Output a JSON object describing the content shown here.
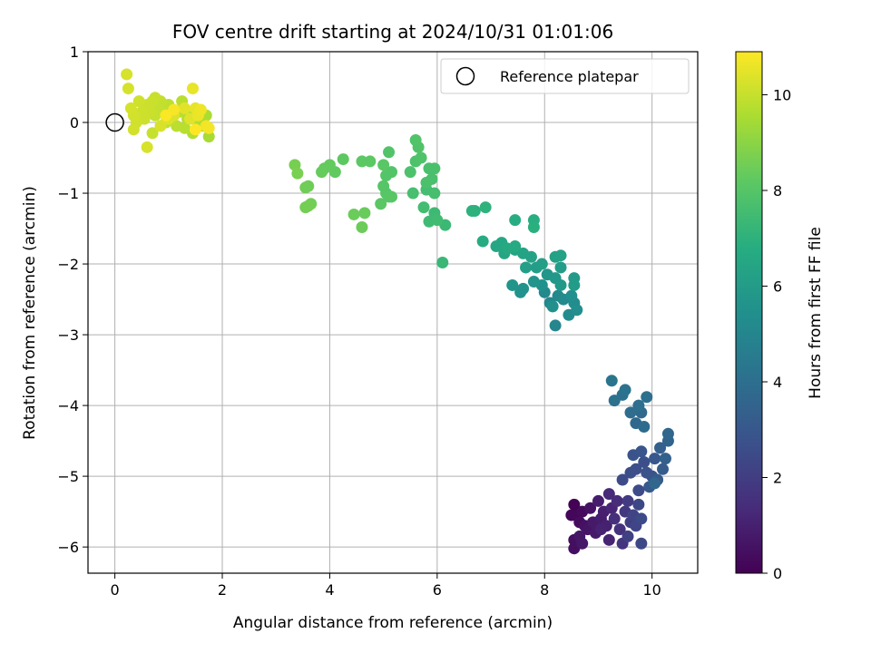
{
  "chart_data": {
    "type": "scatter",
    "title": "FOV centre drift starting at 2024/10/31 01:01:06",
    "xlabel": "Angular distance from reference (arcmin)",
    "ylabel": "Rotation from reference (arcmin)",
    "colorbar_label": "Hours from first FF file",
    "xlim": [
      -0.5,
      10.85
    ],
    "ylim": [
      -6.37,
      1.0
    ],
    "x_ticks": [
      0,
      2,
      4,
      6,
      8,
      10
    ],
    "y_ticks": [
      1,
      0,
      -1,
      -2,
      -3,
      -4,
      -5,
      -6
    ],
    "x_tick_labels": [
      "0",
      "2",
      "4",
      "6",
      "8",
      "10"
    ],
    "y_tick_labels": [
      "1",
      "0",
      "−1",
      "−2",
      "−3",
      "−4",
      "−5",
      "−6"
    ],
    "colorbar_range": [
      0,
      10.9
    ],
    "colorbar_ticks": [
      0,
      2,
      4,
      6,
      8,
      10
    ],
    "colorbar_tick_labels": [
      "0",
      "2",
      "4",
      "6",
      "8",
      "10"
    ],
    "colormap": "viridis",
    "grid": true,
    "legend": {
      "placement": "top-right",
      "entries": [
        {
          "label": "Reference platepar",
          "marker": "open-circle",
          "x": 0,
          "y": 0
        }
      ]
    },
    "points": [
      [
        8.55,
        -5.4,
        0.05
      ],
      [
        8.6,
        -5.55,
        0.15
      ],
      [
        8.5,
        -5.55,
        0.2
      ],
      [
        8.7,
        -5.5,
        0.3
      ],
      [
        8.65,
        -5.65,
        0.35
      ],
      [
        8.55,
        -5.9,
        0.4
      ],
      [
        8.55,
        -6.02,
        0.45
      ],
      [
        8.75,
        -5.7,
        0.5
      ],
      [
        8.85,
        -5.45,
        0.55
      ],
      [
        8.8,
        -5.75,
        0.6
      ],
      [
        8.65,
        -5.85,
        0.65
      ],
      [
        8.7,
        -5.95,
        0.7
      ],
      [
        8.9,
        -5.65,
        0.75
      ],
      [
        8.95,
        -5.8,
        0.8
      ],
      [
        9.05,
        -5.6,
        0.85
      ],
      [
        9.0,
        -5.35,
        0.9
      ],
      [
        9.1,
        -5.5,
        0.95
      ],
      [
        9.15,
        -5.7,
        1.0
      ],
      [
        9.05,
        -5.75,
        1.05
      ],
      [
        9.2,
        -5.9,
        1.1
      ],
      [
        9.25,
        -5.45,
        1.2
      ],
      [
        9.2,
        -5.25,
        1.3
      ],
      [
        9.35,
        -5.35,
        1.4
      ],
      [
        9.3,
        -5.6,
        1.5
      ],
      [
        9.4,
        -5.75,
        1.6
      ],
      [
        9.45,
        -5.95,
        1.7
      ],
      [
        9.5,
        -5.5,
        1.8
      ],
      [
        9.55,
        -5.35,
        1.9
      ],
      [
        9.6,
        -5.65,
        2.0
      ],
      [
        9.55,
        -5.85,
        2.1
      ],
      [
        9.65,
        -5.55,
        2.2
      ],
      [
        9.7,
        -5.7,
        2.3
      ],
      [
        9.75,
        -5.4,
        2.35
      ],
      [
        9.8,
        -5.95,
        2.4
      ],
      [
        9.8,
        -5.6,
        2.45
      ],
      [
        9.75,
        -5.2,
        2.5
      ],
      [
        9.45,
        -5.05,
        2.55
      ],
      [
        9.6,
        -4.95,
        2.6
      ],
      [
        9.7,
        -4.9,
        2.65
      ],
      [
        9.85,
        -4.8,
        2.7
      ],
      [
        9.9,
        -4.95,
        2.75
      ],
      [
        10.0,
        -5.0,
        2.8
      ],
      [
        9.65,
        -4.7,
        2.85
      ],
      [
        9.8,
        -4.65,
        2.9
      ],
      [
        10.05,
        -4.75,
        3.0
      ],
      [
        9.95,
        -5.15,
        3.05
      ],
      [
        10.1,
        -5.05,
        3.1
      ],
      [
        10.2,
        -4.9,
        3.2
      ],
      [
        10.15,
        -4.6,
        3.3
      ],
      [
        10.25,
        -4.75,
        3.4
      ],
      [
        10.3,
        -4.5,
        3.5
      ],
      [
        10.3,
        -4.4,
        3.6
      ],
      [
        10.05,
        -5.1,
        3.65
      ],
      [
        9.7,
        -4.25,
        3.7
      ],
      [
        9.8,
        -4.1,
        3.8
      ],
      [
        9.85,
        -4.3,
        3.85
      ],
      [
        9.6,
        -4.1,
        3.9
      ],
      [
        9.75,
        -4.0,
        3.95
      ],
      [
        9.9,
        -3.88,
        4.0
      ],
      [
        9.45,
        -3.85,
        4.05
      ],
      [
        9.3,
        -3.93,
        4.1
      ],
      [
        9.5,
        -3.78,
        4.15
      ],
      [
        9.25,
        -3.65,
        4.2
      ],
      [
        8.2,
        -2.87,
        5.0
      ],
      [
        8.1,
        -2.55,
        5.05
      ],
      [
        8.25,
        -2.45,
        5.1
      ],
      [
        8.0,
        -2.4,
        5.15
      ],
      [
        8.35,
        -2.5,
        5.2
      ],
      [
        8.45,
        -2.72,
        5.25
      ],
      [
        8.55,
        -2.55,
        5.3
      ],
      [
        8.6,
        -2.65,
        5.35
      ],
      [
        8.5,
        -2.45,
        5.4
      ],
      [
        8.15,
        -2.6,
        5.45
      ],
      [
        7.95,
        -2.3,
        5.5
      ],
      [
        7.55,
        -2.4,
        5.55
      ],
      [
        7.6,
        -2.35,
        5.6
      ],
      [
        7.8,
        -2.25,
        5.65
      ],
      [
        7.4,
        -2.3,
        5.7
      ],
      [
        8.05,
        -2.15,
        5.75
      ],
      [
        8.2,
        -2.2,
        5.8
      ],
      [
        8.3,
        -2.3,
        5.85
      ],
      [
        8.55,
        -2.2,
        5.9
      ],
      [
        8.55,
        -2.3,
        5.95
      ],
      [
        8.3,
        -2.05,
        6.0
      ],
      [
        7.85,
        -2.05,
        6.05
      ],
      [
        7.65,
        -2.05,
        6.1
      ],
      [
        7.95,
        -2.0,
        6.15
      ],
      [
        8.2,
        -1.9,
        6.2
      ],
      [
        8.3,
        -1.88,
        6.25
      ],
      [
        7.75,
        -1.9,
        6.3
      ],
      [
        7.6,
        -1.85,
        6.35
      ],
      [
        7.45,
        -1.8,
        6.4
      ],
      [
        7.25,
        -1.85,
        6.45
      ],
      [
        7.1,
        -1.75,
        6.5
      ],
      [
        7.2,
        -1.7,
        6.55
      ],
      [
        7.3,
        -1.78,
        6.6
      ],
      [
        7.45,
        -1.75,
        6.65
      ],
      [
        6.85,
        -1.68,
        6.7
      ],
      [
        7.45,
        -1.38,
        6.8
      ],
      [
        7.8,
        -1.38,
        6.85
      ],
      [
        7.8,
        -1.48,
        6.9
      ],
      [
        6.7,
        -1.25,
        6.95
      ],
      [
        6.65,
        -1.25,
        7.0
      ],
      [
        6.9,
        -1.2,
        7.05
      ],
      [
        6.1,
        -1.98,
        7.3
      ],
      [
        6.15,
        -1.45,
        7.35
      ],
      [
        5.95,
        -1.28,
        7.4
      ],
      [
        5.85,
        -1.4,
        7.45
      ],
      [
        6.0,
        -1.38,
        7.5
      ],
      [
        5.75,
        -1.2,
        7.55
      ],
      [
        5.8,
        -0.95,
        7.6
      ],
      [
        5.95,
        -1.0,
        7.62
      ],
      [
        5.55,
        -1.0,
        7.65
      ],
      [
        5.9,
        -0.8,
        7.7
      ],
      [
        5.85,
        -0.65,
        7.72
      ],
      [
        5.95,
        -0.65,
        7.75
      ],
      [
        5.8,
        -0.85,
        7.78
      ],
      [
        5.5,
        -0.7,
        7.8
      ],
      [
        5.6,
        -0.55,
        7.82
      ],
      [
        5.7,
        -0.5,
        7.85
      ],
      [
        5.65,
        -0.35,
        7.88
      ],
      [
        5.6,
        -0.25,
        7.9
      ],
      [
        5.1,
        -0.42,
        7.92
      ],
      [
        5.15,
        -0.7,
        7.95
      ],
      [
        5.05,
        -0.75,
        7.97
      ],
      [
        5.0,
        -0.9,
        8.0
      ],
      [
        5.05,
        -1.0,
        8.02
      ],
      [
        5.1,
        -1.05,
        8.05
      ],
      [
        5.15,
        -1.05,
        8.08
      ],
      [
        5.0,
        -0.6,
        8.1
      ],
      [
        4.95,
        -1.15,
        8.12
      ],
      [
        4.75,
        -0.55,
        8.15
      ],
      [
        4.6,
        -0.55,
        8.18
      ],
      [
        4.25,
        -0.52,
        8.2
      ],
      [
        4.1,
        -0.7,
        8.25
      ],
      [
        4.0,
        -0.6,
        8.3
      ],
      [
        3.9,
        -0.65,
        8.32
      ],
      [
        3.85,
        -0.7,
        8.35
      ],
      [
        4.65,
        -1.28,
        8.4
      ],
      [
        4.45,
        -1.3,
        8.42
      ],
      [
        4.6,
        -1.48,
        8.45
      ],
      [
        3.6,
        -0.9,
        8.5
      ],
      [
        3.55,
        -0.92,
        8.52
      ],
      [
        3.65,
        -1.15,
        8.55
      ],
      [
        3.55,
        -1.2,
        8.58
      ],
      [
        3.6,
        -1.18,
        8.6
      ],
      [
        3.35,
        -0.6,
        8.65
      ],
      [
        3.4,
        -0.72,
        8.7
      ],
      [
        1.75,
        -0.2,
        9.5
      ],
      [
        1.7,
        0.1,
        9.55
      ],
      [
        1.65,
        -0.05,
        9.6
      ],
      [
        1.6,
        0.15,
        9.62
      ],
      [
        1.55,
        0.0,
        9.65
      ],
      [
        1.45,
        -0.15,
        9.68
      ],
      [
        1.4,
        0.1,
        9.7
      ],
      [
        1.35,
        0.05,
        9.72
      ],
      [
        1.3,
        -0.08,
        9.75
      ],
      [
        1.2,
        0.15,
        9.78
      ],
      [
        1.25,
        0.3,
        9.8
      ],
      [
        1.15,
        -0.05,
        9.82
      ],
      [
        1.05,
        0.05,
        9.85
      ],
      [
        1.0,
        0.25,
        9.87
      ],
      [
        0.95,
        0.0,
        9.9
      ],
      [
        0.9,
        0.15,
        9.92
      ],
      [
        0.85,
        0.3,
        9.94
      ],
      [
        0.8,
        0.2,
        9.96
      ],
      [
        0.75,
        0.1,
        9.98
      ],
      [
        0.7,
        -0.15,
        10.0
      ],
      [
        0.75,
        0.35,
        10.02
      ],
      [
        0.7,
        0.3,
        10.04
      ],
      [
        0.65,
        0.15,
        10.06
      ],
      [
        0.6,
        0.25,
        10.08
      ],
      [
        0.55,
        0.05,
        10.1
      ],
      [
        0.5,
        0.15,
        10.12
      ],
      [
        0.45,
        0.3,
        10.14
      ],
      [
        0.4,
        0.0,
        10.16
      ],
      [
        0.35,
        -0.1,
        10.18
      ],
      [
        0.35,
        0.1,
        10.2
      ],
      [
        0.3,
        0.2,
        10.22
      ],
      [
        0.25,
        0.48,
        10.24
      ],
      [
        0.22,
        0.68,
        10.26
      ],
      [
        0.6,
        -0.35,
        10.28
      ],
      [
        0.85,
        -0.05,
        10.3
      ],
      [
        1.1,
        0.1,
        10.32
      ],
      [
        1.0,
        0.05,
        10.35
      ],
      [
        1.4,
        0.05,
        10.4
      ],
      [
        1.3,
        0.2,
        10.45
      ],
      [
        1.5,
        0.2,
        10.5
      ],
      [
        1.45,
        0.48,
        10.55
      ],
      [
        1.55,
        0.1,
        10.6
      ],
      [
        1.6,
        0.18,
        10.65
      ],
      [
        1.7,
        -0.05,
        10.7
      ],
      [
        1.75,
        -0.08,
        10.75
      ],
      [
        1.1,
        0.18,
        10.8
      ],
      [
        0.95,
        0.1,
        10.85
      ],
      [
        1.5,
        -0.1,
        10.9
      ]
    ]
  }
}
